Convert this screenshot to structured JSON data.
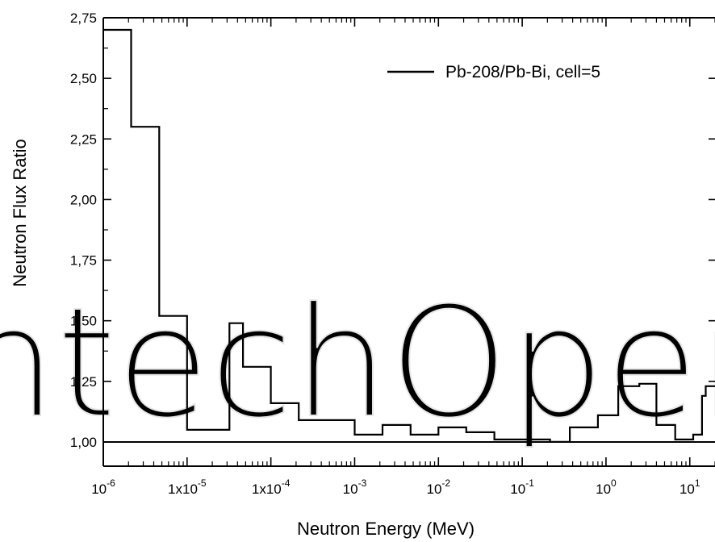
{
  "chart_data": {
    "type": "line",
    "step": true,
    "xscale": "log",
    "xlabel": "Neutron Energy  (MeV)",
    "ylabel": "Neutron Flux Ratio",
    "xlim": [
      1e-06,
      20
    ],
    "ylim": [
      0.9,
      2.75
    ],
    "yticks": [
      "1,00",
      "1,25",
      "1,50",
      "1,75",
      "2,00",
      "2,25",
      "2,50",
      "2,75"
    ],
    "ytick_values": [
      1.0,
      1.25,
      1.5,
      1.75,
      2.0,
      2.25,
      2.5,
      2.75
    ],
    "xticks": [
      {
        "value": 1e-06,
        "base": "10",
        "exp": "-6"
      },
      {
        "value": 1e-05,
        "base": "1x10",
        "exp": "-5"
      },
      {
        "value": 0.0001,
        "base": "1x10",
        "exp": "-4"
      },
      {
        "value": 0.001,
        "base": "10",
        "exp": "-3"
      },
      {
        "value": 0.01,
        "base": "10",
        "exp": "-2"
      },
      {
        "value": 0.1,
        "base": "10",
        "exp": "-1"
      },
      {
        "value": 1,
        "base": "10",
        "exp": "0"
      },
      {
        "value": 10,
        "base": "10",
        "exp": "1"
      }
    ],
    "reference_line": 1.0,
    "legend": {
      "placement": "top-right"
    },
    "series": [
      {
        "name": "Pb-208/Pb-Bi, cell=5",
        "edges": [
          1e-06,
          2.15e-06,
          4.65e-06,
          1e-05,
          2.15e-05,
          3.2e-05,
          4.65e-05,
          0.0001,
          0.000215,
          0.000465,
          0.001,
          0.00215,
          0.00465,
          0.01,
          0.0215,
          0.0465,
          0.1,
          0.215,
          0.37,
          0.8,
          1.4,
          2.5,
          4.0,
          6.7,
          11,
          14,
          15.5,
          20
        ],
        "values": [
          2.7,
          2.3,
          1.52,
          1.05,
          1.05,
          1.49,
          1.31,
          1.16,
          1.09,
          1.09,
          1.03,
          1.07,
          1.03,
          1.06,
          1.04,
          1.01,
          1.01,
          1.0,
          1.06,
          1.11,
          1.23,
          1.24,
          1.07,
          1.01,
          1.03,
          1.19,
          1.23
        ]
      }
    ],
    "watermark": "IntechOpen"
  }
}
